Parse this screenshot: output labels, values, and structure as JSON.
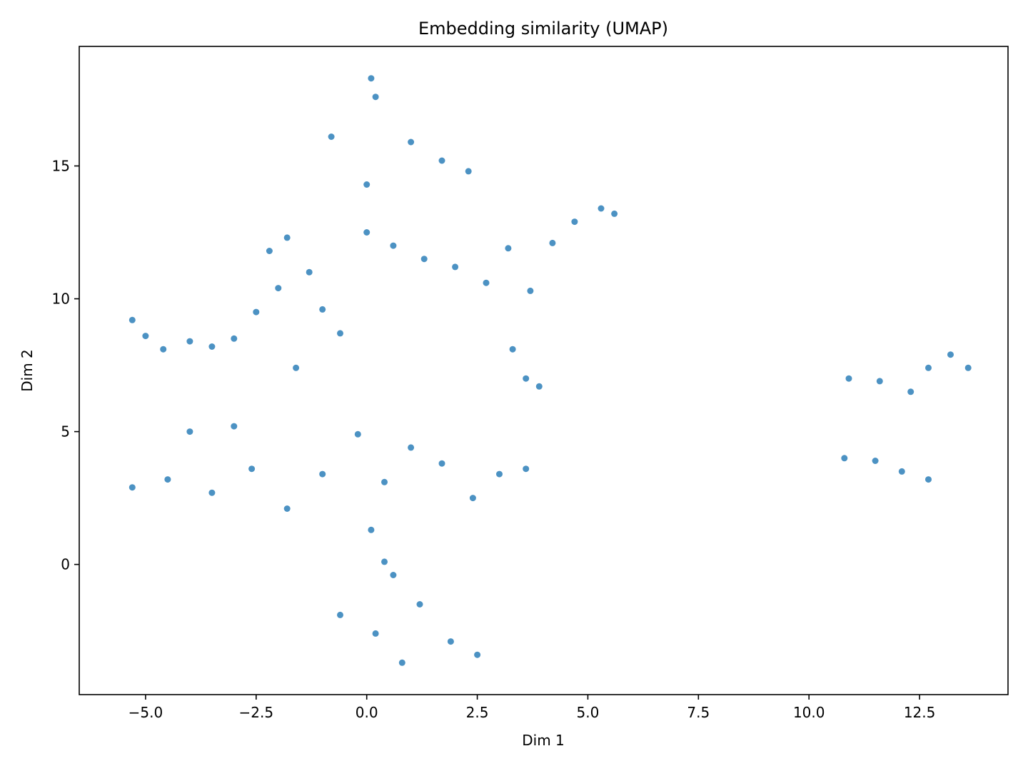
{
  "chart_data": {
    "type": "scatter",
    "title": "Embedding similarity (UMAP)",
    "xlabel": "Dim 1",
    "ylabel": "Dim 2",
    "xlim": [
      -6.5,
      14.5
    ],
    "ylim": [
      -4.9,
      19.5
    ],
    "grid": false,
    "legend": "none",
    "x_ticks": [
      -5.0,
      -2.5,
      0.0,
      2.5,
      5.0,
      7.5,
      10.0,
      12.5
    ],
    "x_tick_labels": [
      "−5.0",
      "−2.5",
      "0.0",
      "2.5",
      "5.0",
      "7.5",
      "10.0",
      "12.5"
    ],
    "y_ticks": [
      0,
      5,
      10,
      15
    ],
    "y_tick_labels": [
      "0",
      "5",
      "10",
      "15"
    ],
    "point_color": "#1f77b4",
    "point_alpha": 0.8,
    "series": [
      {
        "points": [
          [
            -5.3,
            9.2
          ],
          [
            -5.0,
            8.6
          ],
          [
            -4.6,
            8.1
          ],
          [
            -4.0,
            8.4
          ],
          [
            -3.5,
            8.2
          ],
          [
            -3.0,
            8.5
          ],
          [
            -2.5,
            9.5
          ],
          [
            -2.2,
            11.8
          ],
          [
            -1.8,
            12.3
          ],
          [
            -1.3,
            11.0
          ],
          [
            -1.0,
            9.6
          ],
          [
            -0.6,
            8.7
          ],
          [
            -1.6,
            7.4
          ],
          [
            -2.0,
            10.4
          ],
          [
            0.0,
            12.5
          ],
          [
            0.6,
            12.0
          ],
          [
            1.3,
            11.5
          ],
          [
            2.0,
            11.2
          ],
          [
            2.7,
            10.6
          ],
          [
            3.2,
            11.9
          ],
          [
            3.7,
            10.3
          ],
          [
            4.2,
            12.1
          ],
          [
            4.7,
            12.9
          ],
          [
            5.3,
            13.4
          ],
          [
            5.6,
            13.2
          ],
          [
            1.0,
            15.9
          ],
          [
            1.7,
            15.2
          ],
          [
            2.3,
            14.8
          ],
          [
            0.0,
            14.3
          ],
          [
            -0.8,
            16.1
          ],
          [
            0.2,
            17.6
          ],
          [
            0.1,
            18.3
          ],
          [
            3.3,
            8.1
          ],
          [
            3.6,
            7.0
          ],
          [
            3.9,
            6.7
          ],
          [
            -5.3,
            2.9
          ],
          [
            -4.5,
            3.2
          ],
          [
            -3.5,
            2.7
          ],
          [
            -2.6,
            3.6
          ],
          [
            -3.0,
            5.2
          ],
          [
            -4.0,
            5.0
          ],
          [
            -1.8,
            2.1
          ],
          [
            -1.0,
            3.4
          ],
          [
            -0.2,
            4.9
          ],
          [
            0.4,
            3.1
          ],
          [
            1.0,
            4.4
          ],
          [
            1.7,
            3.8
          ],
          [
            2.4,
            2.5
          ],
          [
            3.0,
            3.4
          ],
          [
            3.6,
            3.6
          ],
          [
            0.1,
            1.3
          ],
          [
            0.4,
            0.1
          ],
          [
            0.6,
            -0.4
          ],
          [
            -0.6,
            -1.9
          ],
          [
            0.2,
            -2.6
          ],
          [
            1.2,
            -1.5
          ],
          [
            1.9,
            -2.9
          ],
          [
            2.5,
            -3.4
          ],
          [
            0.8,
            -3.7
          ],
          [
            10.9,
            7.0
          ],
          [
            11.6,
            6.9
          ],
          [
            12.3,
            6.5
          ],
          [
            12.7,
            7.4
          ],
          [
            13.2,
            7.9
          ],
          [
            13.6,
            7.4
          ],
          [
            10.8,
            4.0
          ],
          [
            11.5,
            3.9
          ],
          [
            12.1,
            3.5
          ],
          [
            12.7,
            3.2
          ]
        ]
      }
    ]
  }
}
